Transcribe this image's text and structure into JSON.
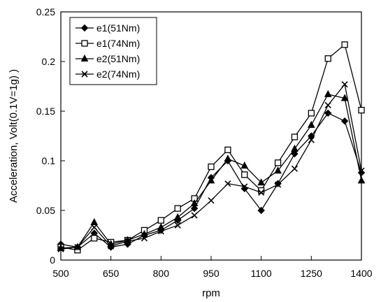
{
  "chart_data": {
    "type": "line",
    "xlabel": "rpm",
    "ylabel": "Acceleration, Volt(0.1V=1g) )",
    "xlim": [
      500,
      1400
    ],
    "ylim": [
      0,
      0.25
    ],
    "x_ticks": [
      "500",
      "650",
      "800",
      "950",
      "1100",
      "1250",
      "1400"
    ],
    "y_ticks": [
      "0",
      "0.05",
      "0.1",
      "0.15",
      "0.2",
      "0.25"
    ],
    "legend_position": "top-left",
    "x": [
      500,
      550,
      600,
      650,
      700,
      750,
      800,
      850,
      900,
      950,
      1000,
      1050,
      1100,
      1150,
      1200,
      1250,
      1300,
      1350,
      1400
    ],
    "series": [
      {
        "name": "e1(51Nm)",
        "marker": "diamond-filled",
        "values": [
          0.016,
          0.013,
          0.027,
          0.013,
          0.016,
          0.025,
          0.03,
          0.04,
          0.052,
          0.083,
          0.1,
          0.072,
          0.05,
          0.077,
          0.107,
          0.125,
          0.148,
          0.14,
          0.088
        ]
      },
      {
        "name": "e1(74Nm)",
        "marker": "square-open",
        "values": [
          0.013,
          0.01,
          0.022,
          0.018,
          0.02,
          0.03,
          0.04,
          0.052,
          0.062,
          0.094,
          0.111,
          0.086,
          0.07,
          0.098,
          0.124,
          0.148,
          0.203,
          0.217,
          0.151
        ]
      },
      {
        "name": "e2(51Nm)",
        "marker": "triangle-filled",
        "values": [
          0.012,
          0.013,
          0.038,
          0.016,
          0.02,
          0.026,
          0.033,
          0.043,
          0.057,
          0.08,
          0.102,
          0.095,
          0.078,
          0.09,
          0.112,
          0.136,
          0.167,
          0.163,
          0.08
        ]
      },
      {
        "name": "e2(74Nm)",
        "marker": "x",
        "values": [
          0.011,
          0.013,
          0.033,
          0.014,
          0.019,
          0.022,
          0.029,
          0.035,
          0.045,
          0.06,
          0.077,
          0.074,
          0.068,
          0.076,
          0.092,
          0.121,
          0.156,
          0.177,
          0.09
        ]
      }
    ]
  }
}
